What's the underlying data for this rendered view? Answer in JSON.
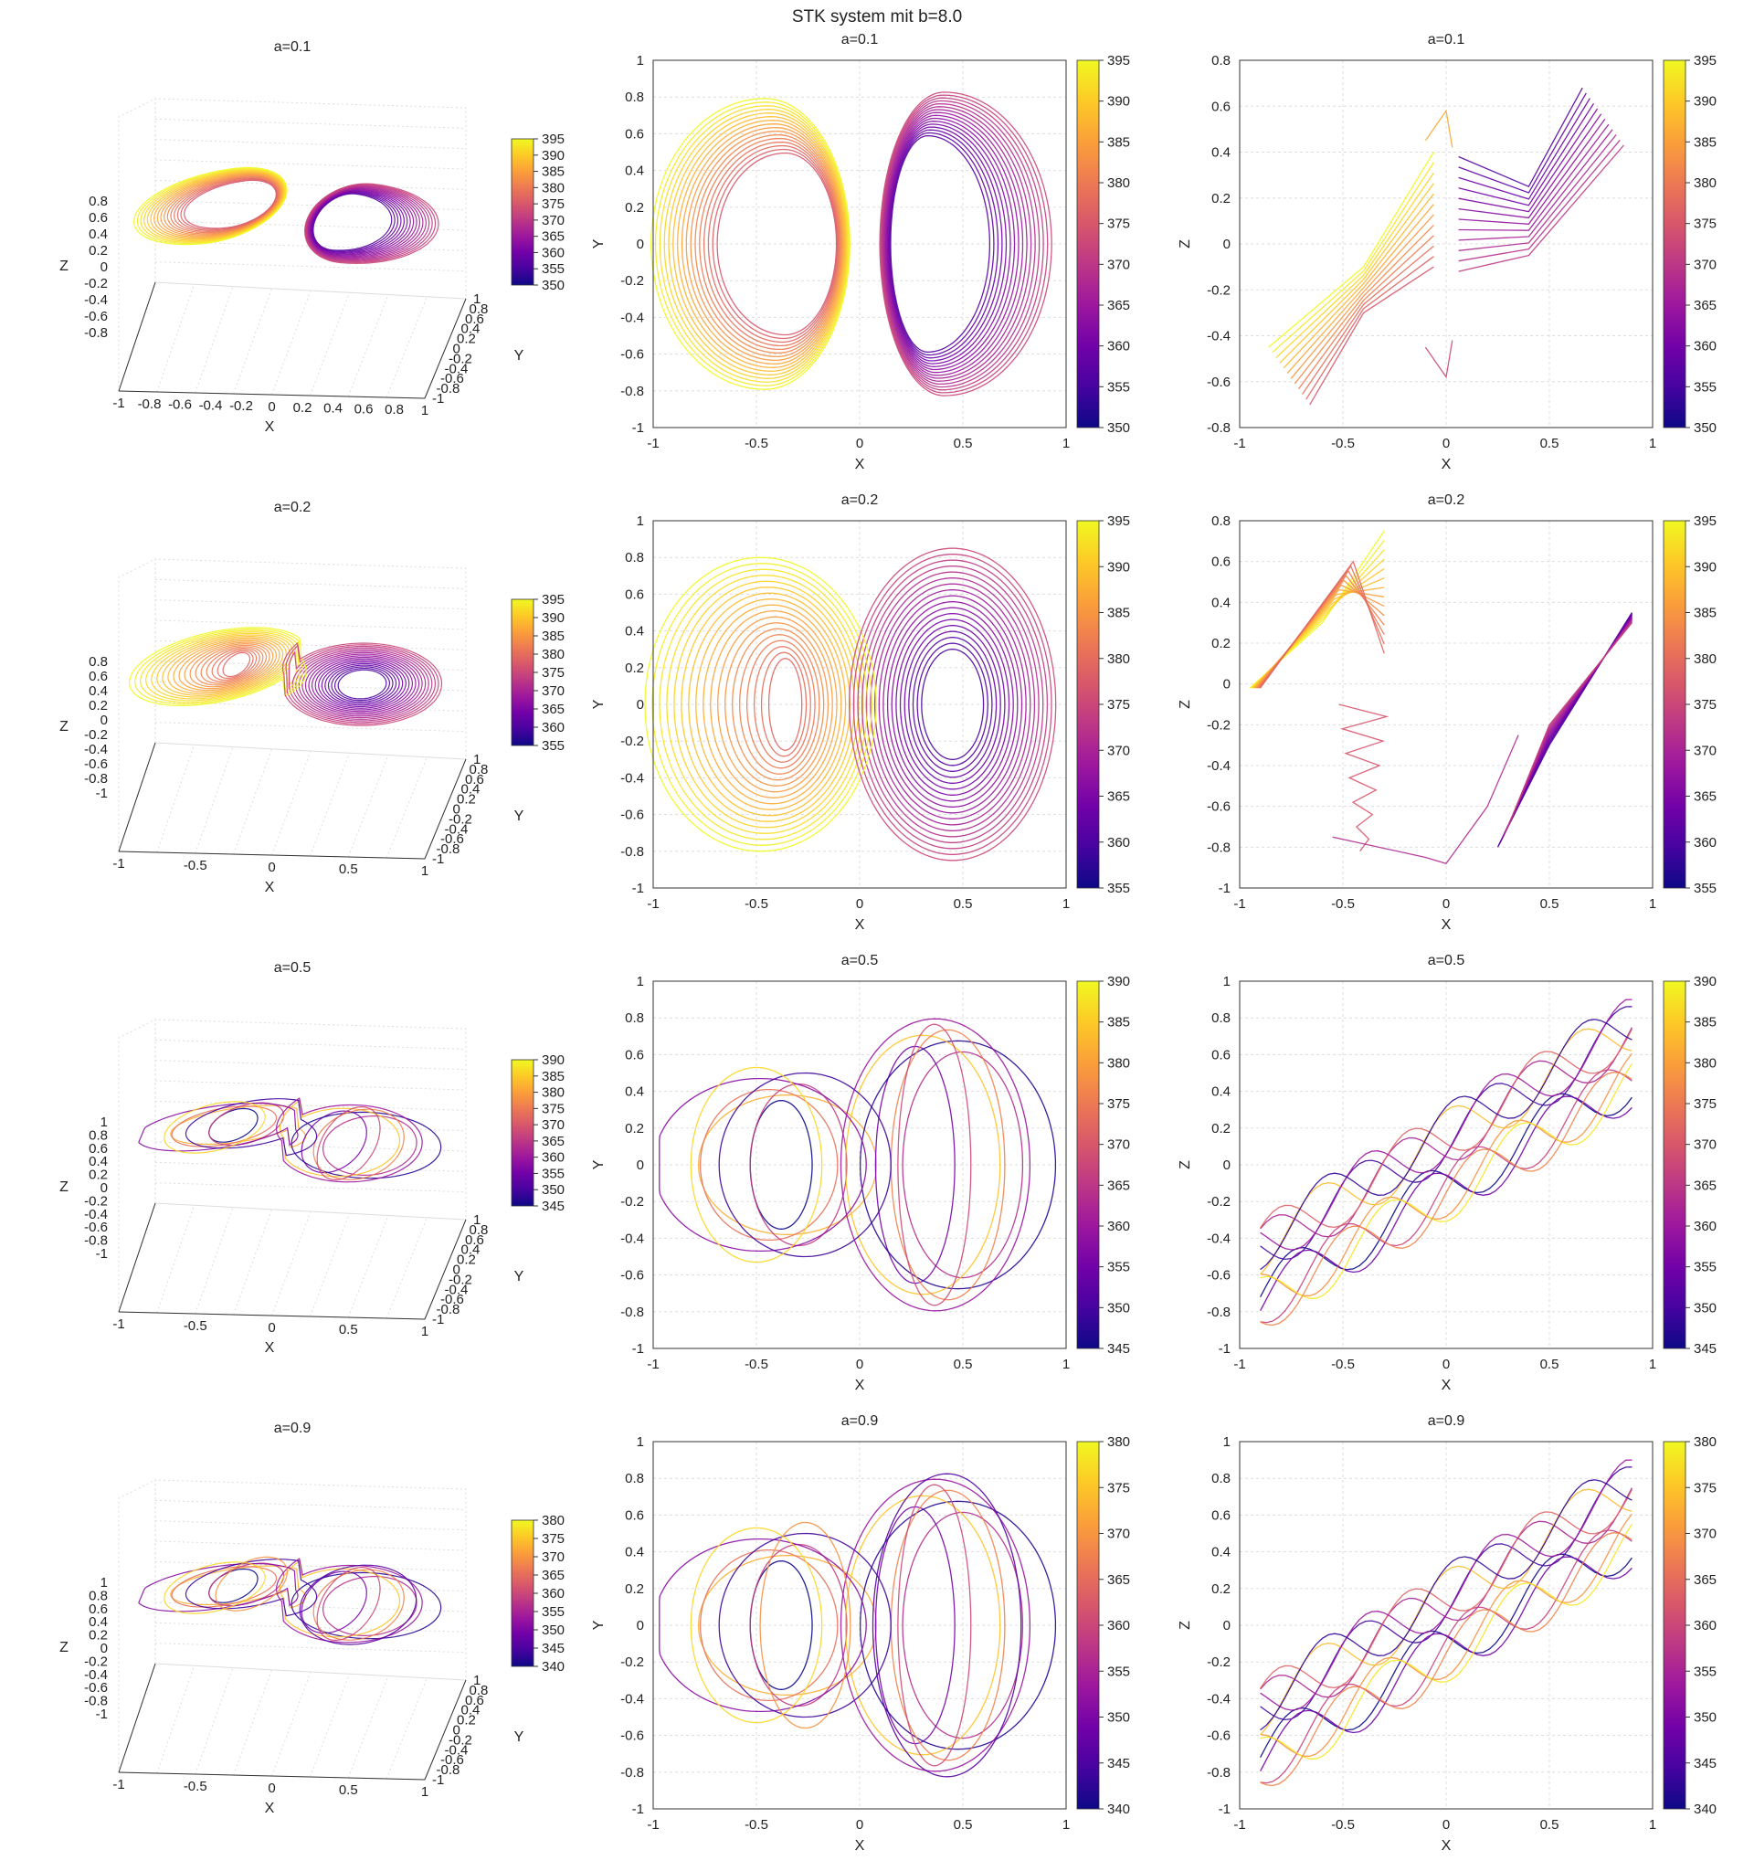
{
  "figure": {
    "title": "STK system mit b=8.0"
  },
  "colors": {
    "colormap": [
      "#0d0887",
      "#46039f",
      "#7201a8",
      "#9c179e",
      "#bd3786",
      "#d8576b",
      "#ed7953",
      "#fb9f3a",
      "#fdca26",
      "#f0f921"
    ],
    "grid": "#dddddd",
    "axes": "#333333"
  },
  "chart_data": [
    {
      "type": "line3d",
      "row": 0,
      "title": "a=0.1",
      "xlabel": "X",
      "ylabel": "Y",
      "zlabel": "Z",
      "xticks": [
        "-1",
        "-0.8",
        "-0.6",
        "-0.4",
        "-0.2",
        "0",
        "0.2",
        "0.4",
        "0.6",
        "0.8",
        "1"
      ],
      "yticks": [
        "1",
        "0.8",
        "0.6",
        "0.4",
        "0.2",
        "0",
        "-0.2",
        "-0.4",
        "-0.6",
        "-0.8",
        "-1"
      ],
      "zticks": [
        "0.8",
        "0.6",
        "0.4",
        "0.2",
        "0",
        "-0.2",
        "-0.4",
        "-0.6",
        "-0.8"
      ],
      "colorbar": {
        "min": 350,
        "max": 395,
        "ticks": [
          "395",
          "390",
          "385",
          "380",
          "375",
          "370",
          "365",
          "360",
          "355",
          "350"
        ]
      }
    },
    {
      "type": "line",
      "row": 0,
      "title": "a=0.1",
      "xlabel": "X",
      "ylabel": "Y",
      "xlim": [
        -1,
        1
      ],
      "ylim": [
        -1,
        1
      ],
      "xticks": [
        "-1",
        "-0.5",
        "0",
        "0.5",
        "1"
      ],
      "yticks": [
        "1",
        "0.8",
        "0.6",
        "0.4",
        "0.2",
        "0",
        "-0.2",
        "-0.4",
        "-0.6",
        "-0.8",
        "-1"
      ],
      "colorbar": {
        "min": 350,
        "max": 395,
        "ticks": [
          "395",
          "390",
          "385",
          "380",
          "375",
          "370",
          "365",
          "360",
          "355",
          "350"
        ]
      }
    },
    {
      "type": "line",
      "row": 0,
      "title": "a=0.1",
      "xlabel": "X",
      "ylabel": "Z",
      "xlim": [
        -1,
        1
      ],
      "ylim": [
        -0.8,
        0.8
      ],
      "xticks": [
        "-1",
        "-0.5",
        "0",
        "0.5",
        "1"
      ],
      "yticks": [
        "0.8",
        "0.6",
        "0.4",
        "0.2",
        "0",
        "-0.2",
        "-0.4",
        "-0.6",
        "-0.8"
      ],
      "colorbar": {
        "min": 350,
        "max": 395,
        "ticks": [
          "395",
          "390",
          "385",
          "380",
          "375",
          "370",
          "365",
          "360",
          "355",
          "350"
        ]
      }
    },
    {
      "type": "line3d",
      "row": 1,
      "title": "a=0.2",
      "xlabel": "X",
      "ylabel": "Y",
      "zlabel": "Z",
      "xticks": [
        "-1",
        "-0.5",
        "0",
        "0.5",
        "1"
      ],
      "yticks": [
        "1",
        "0.8",
        "0.6",
        "0.4",
        "0.2",
        "0",
        "-0.2",
        "-0.4",
        "-0.6",
        "-0.8",
        "-1"
      ],
      "zticks": [
        "0.8",
        "0.6",
        "0.4",
        "0.2",
        "0",
        "-0.2",
        "-0.4",
        "-0.6",
        "-0.8",
        "-1"
      ],
      "colorbar": {
        "min": 355,
        "max": 395,
        "ticks": [
          "395",
          "390",
          "385",
          "380",
          "375",
          "370",
          "365",
          "360",
          "355"
        ]
      }
    },
    {
      "type": "line",
      "row": 1,
      "title": "a=0.2",
      "xlabel": "X",
      "ylabel": "Y",
      "xlim": [
        -1,
        1
      ],
      "ylim": [
        -1,
        1
      ],
      "xticks": [
        "-1",
        "-0.5",
        "0",
        "0.5",
        "1"
      ],
      "yticks": [
        "1",
        "0.8",
        "0.6",
        "0.4",
        "0.2",
        "0",
        "-0.2",
        "-0.4",
        "-0.6",
        "-0.8",
        "-1"
      ],
      "colorbar": {
        "min": 355,
        "max": 395,
        "ticks": [
          "395",
          "390",
          "385",
          "380",
          "375",
          "370",
          "365",
          "360",
          "355"
        ]
      }
    },
    {
      "type": "line",
      "row": 1,
      "title": "a=0.2",
      "xlabel": "X",
      "ylabel": "Z",
      "xlim": [
        -1,
        1
      ],
      "ylim": [
        -1,
        0.8
      ],
      "xticks": [
        "-1",
        "-0.5",
        "0",
        "0.5",
        "1"
      ],
      "yticks": [
        "0.8",
        "0.6",
        "0.4",
        "0.2",
        "0",
        "-0.2",
        "-0.4",
        "-0.6",
        "-0.8",
        "-1"
      ],
      "colorbar": {
        "min": 355,
        "max": 395,
        "ticks": [
          "395",
          "390",
          "385",
          "380",
          "375",
          "370",
          "365",
          "360",
          "355"
        ]
      }
    },
    {
      "type": "line3d",
      "row": 2,
      "title": "a=0.5",
      "xlabel": "X",
      "ylabel": "Y",
      "zlabel": "Z",
      "xticks": [
        "-1",
        "-0.5",
        "0",
        "0.5",
        "1"
      ],
      "yticks": [
        "1",
        "0.8",
        "0.6",
        "0.4",
        "0.2",
        "0",
        "-0.2",
        "-0.4",
        "-0.6",
        "-0.8",
        "-1"
      ],
      "zticks": [
        "1",
        "0.8",
        "0.6",
        "0.4",
        "0.2",
        "0",
        "-0.2",
        "-0.4",
        "-0.6",
        "-0.8",
        "-1"
      ],
      "colorbar": {
        "min": 345,
        "max": 390,
        "ticks": [
          "390",
          "385",
          "380",
          "375",
          "370",
          "365",
          "360",
          "355",
          "350",
          "345"
        ]
      }
    },
    {
      "type": "line",
      "row": 2,
      "title": "a=0.5",
      "xlabel": "X",
      "ylabel": "Y",
      "xlim": [
        -1,
        1
      ],
      "ylim": [
        -1,
        1
      ],
      "xticks": [
        "-1",
        "-0.5",
        "0",
        "0.5",
        "1"
      ],
      "yticks": [
        "1",
        "0.8",
        "0.6",
        "0.4",
        "0.2",
        "0",
        "-0.2",
        "-0.4",
        "-0.6",
        "-0.8",
        "-1"
      ],
      "colorbar": {
        "min": 345,
        "max": 390,
        "ticks": [
          "390",
          "385",
          "380",
          "375",
          "370",
          "365",
          "360",
          "355",
          "350",
          "345"
        ]
      }
    },
    {
      "type": "line",
      "row": 2,
      "title": "a=0.5",
      "xlabel": "X",
      "ylabel": "Z",
      "xlim": [
        -1,
        1
      ],
      "ylim": [
        -1,
        1
      ],
      "xticks": [
        "-1",
        "-0.5",
        "0",
        "0.5",
        "1"
      ],
      "yticks": [
        "1",
        "0.8",
        "0.6",
        "0.4",
        "0.2",
        "0",
        "-0.2",
        "-0.4",
        "-0.6",
        "-0.8",
        "-1"
      ],
      "colorbar": {
        "min": 345,
        "max": 390,
        "ticks": [
          "390",
          "385",
          "380",
          "375",
          "370",
          "365",
          "360",
          "355",
          "350",
          "345"
        ]
      }
    },
    {
      "type": "line3d",
      "row": 3,
      "title": "a=0.9",
      "xlabel": "X",
      "ylabel": "Y",
      "zlabel": "Z",
      "xticks": [
        "-1",
        "-0.5",
        "0",
        "0.5",
        "1"
      ],
      "yticks": [
        "1",
        "0.8",
        "0.6",
        "0.4",
        "0.2",
        "0",
        "-0.2",
        "-0.4",
        "-0.6",
        "-0.8",
        "-1"
      ],
      "zticks": [
        "1",
        "0.8",
        "0.6",
        "0.4",
        "0.2",
        "0",
        "-0.2",
        "-0.4",
        "-0.6",
        "-0.8",
        "-1"
      ],
      "colorbar": {
        "min": 340,
        "max": 380,
        "ticks": [
          "380",
          "375",
          "370",
          "365",
          "360",
          "355",
          "350",
          "345",
          "340"
        ]
      }
    },
    {
      "type": "line",
      "row": 3,
      "title": "a=0.9",
      "xlabel": "X",
      "ylabel": "Y",
      "xlim": [
        -1,
        1
      ],
      "ylim": [
        -1,
        1
      ],
      "xticks": [
        "-1",
        "-0.5",
        "0",
        "0.5",
        "1"
      ],
      "yticks": [
        "1",
        "0.8",
        "0.6",
        "0.4",
        "0.2",
        "0",
        "-0.2",
        "-0.4",
        "-0.6",
        "-0.8",
        "-1"
      ],
      "colorbar": {
        "min": 340,
        "max": 380,
        "ticks": [
          "380",
          "375",
          "370",
          "365",
          "360",
          "355",
          "350",
          "345",
          "340"
        ]
      }
    },
    {
      "type": "line",
      "row": 3,
      "title": "a=0.9",
      "xlabel": "X",
      "ylabel": "Z",
      "xlim": [
        -1,
        1
      ],
      "ylim": [
        -1,
        1
      ],
      "xticks": [
        "-1",
        "-0.5",
        "0",
        "0.5",
        "1"
      ],
      "yticks": [
        "1",
        "0.8",
        "0.6",
        "0.4",
        "0.2",
        "0",
        "-0.2",
        "-0.4",
        "-0.6",
        "-0.8",
        "-1"
      ],
      "colorbar": {
        "min": 340,
        "max": 380,
        "ticks": [
          "380",
          "375",
          "370",
          "365",
          "360",
          "355",
          "350",
          "345",
          "340"
        ]
      }
    }
  ]
}
